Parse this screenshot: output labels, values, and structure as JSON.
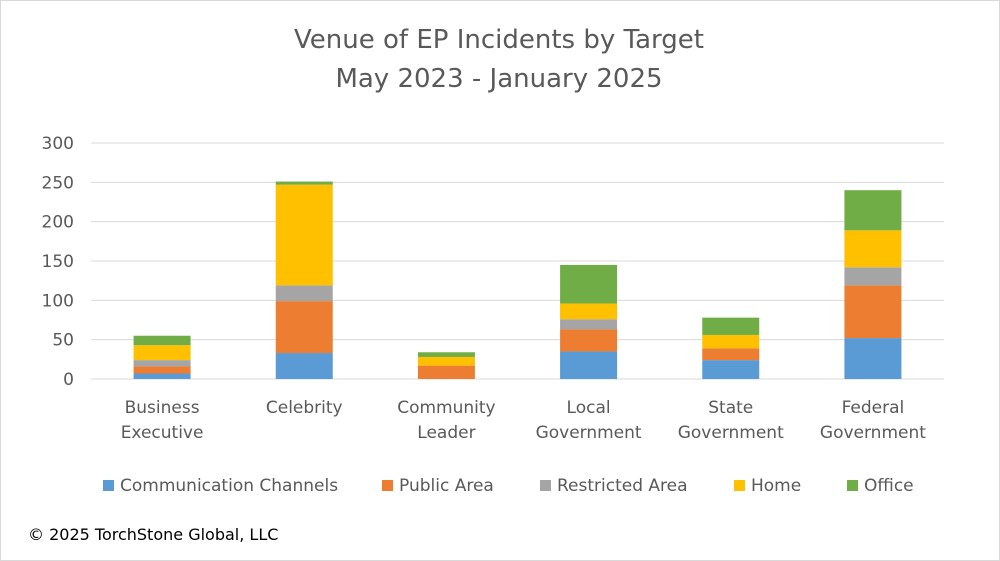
{
  "chart_data": {
    "type": "bar",
    "stacked": true,
    "title": "Venue of EP Incidents by Target",
    "subtitle": "May 2023 - January 2025",
    "categories": [
      [
        "Business",
        "Executive"
      ],
      [
        "Celebrity"
      ],
      [
        "Community",
        "Leader"
      ],
      [
        "Local",
        "Government"
      ],
      [
        "State",
        "Government"
      ],
      [
        "Federal",
        "Government"
      ]
    ],
    "series": [
      {
        "name": "Communication Channels",
        "color": "#5b9bd5",
        "values": [
          7,
          33,
          0,
          35,
          24,
          52
        ]
      },
      {
        "name": "Public Area",
        "color": "#ed7d31",
        "values": [
          9,
          66,
          17,
          28,
          15,
          67
        ]
      },
      {
        "name": "Restricted Area",
        "color": "#a5a5a5",
        "values": [
          8,
          20,
          0,
          13,
          0,
          23
        ]
      },
      {
        "name": "Home",
        "color": "#ffc000",
        "values": [
          19,
          128,
          11,
          20,
          17,
          47
        ]
      },
      {
        "name": "Office",
        "color": "#70ad47",
        "values": [
          12,
          4,
          6,
          49,
          22,
          51
        ]
      }
    ],
    "ylim": [
      0,
      300
    ],
    "yticks": [
      0,
      50,
      100,
      150,
      200,
      250,
      300
    ],
    "grid": true,
    "legend_position": "bottom"
  },
  "copyright": "© 2025 TorchStone Global, LLC",
  "colors": {
    "gridline": "#d9d9d9",
    "text": "#595959"
  }
}
